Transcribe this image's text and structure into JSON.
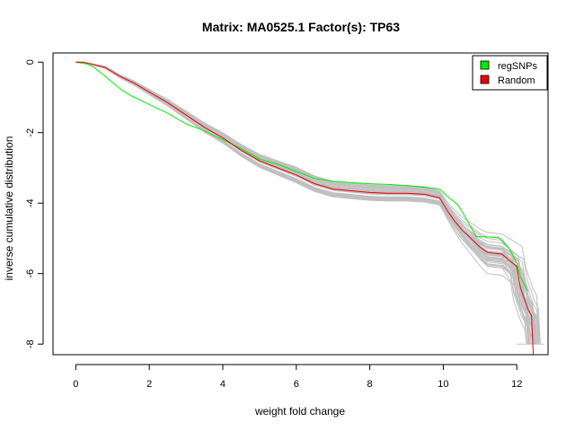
{
  "chart_data": {
    "type": "line",
    "title": "Matrix: MA0525.1 Factor(s): TP63",
    "xlabel": "weight fold change",
    "ylabel": "inverse cumulative distribution",
    "xlim": [
      -0.62,
      12.85
    ],
    "ylim": [
      -8.3,
      0.26
    ],
    "x_ticks": [
      0,
      2,
      4,
      6,
      8,
      10,
      12
    ],
    "y_ticks": [
      0,
      -2,
      -4,
      -6,
      -8
    ],
    "grid": false,
    "legend_position": "top-right",
    "series": [
      {
        "name": "regSNPs",
        "color": "#00ee00",
        "points": [
          [
            0,
            0
          ],
          [
            0.3,
            -0.05
          ],
          [
            0.5,
            -0.15
          ],
          [
            0.8,
            -0.4
          ],
          [
            1.2,
            -0.75
          ],
          [
            1.5,
            -0.95
          ],
          [
            2,
            -1.2
          ],
          [
            2.5,
            -1.45
          ],
          [
            3,
            -1.75
          ],
          [
            3.5,
            -1.95
          ],
          [
            4,
            -2.2
          ],
          [
            4.5,
            -2.45
          ],
          [
            5,
            -2.75
          ],
          [
            5.5,
            -2.9
          ],
          [
            6,
            -3.1
          ],
          [
            6.5,
            -3.3
          ],
          [
            7,
            -3.38
          ],
          [
            7.5,
            -3.42
          ],
          [
            8,
            -3.45
          ],
          [
            8.5,
            -3.47
          ],
          [
            9,
            -3.5
          ],
          [
            9.5,
            -3.55
          ],
          [
            9.9,
            -3.6
          ],
          [
            10.1,
            -3.8
          ],
          [
            10.4,
            -4.05
          ],
          [
            10.6,
            -4.4
          ],
          [
            10.9,
            -4.95
          ],
          [
            11.5,
            -4.97
          ],
          [
            11.8,
            -5.3
          ],
          [
            12,
            -5.7
          ],
          [
            12.1,
            -6.1
          ],
          [
            12.3,
            -6.5
          ]
        ]
      },
      {
        "name": "Random",
        "color": "#ee0000",
        "points": [
          [
            0,
            0
          ],
          [
            0.2,
            0
          ],
          [
            0.4,
            -0.05
          ],
          [
            0.8,
            -0.15
          ],
          [
            1.2,
            -0.4
          ],
          [
            1.6,
            -0.6
          ],
          [
            2,
            -0.85
          ],
          [
            2.5,
            -1.15
          ],
          [
            3,
            -1.5
          ],
          [
            3.5,
            -1.85
          ],
          [
            4,
            -2.15
          ],
          [
            4.5,
            -2.5
          ],
          [
            5,
            -2.8
          ],
          [
            5.5,
            -3
          ],
          [
            6,
            -3.2
          ],
          [
            6.5,
            -3.45
          ],
          [
            7,
            -3.6
          ],
          [
            7.5,
            -3.65
          ],
          [
            8,
            -3.7
          ],
          [
            8.5,
            -3.72
          ],
          [
            9,
            -3.72
          ],
          [
            9.5,
            -3.75
          ],
          [
            9.9,
            -3.85
          ],
          [
            10.1,
            -4.2
          ],
          [
            10.3,
            -4.5
          ],
          [
            10.5,
            -4.75
          ],
          [
            10.8,
            -5.05
          ],
          [
            11,
            -5.25
          ],
          [
            11.2,
            -5.4
          ],
          [
            11.6,
            -5.45
          ],
          [
            12,
            -5.8
          ],
          [
            12.1,
            -6.4
          ],
          [
            12.3,
            -7.0
          ],
          [
            12.4,
            -7.2
          ],
          [
            12.45,
            -8.3
          ]
        ]
      }
    ],
    "background_color": "#c0c0c0"
  }
}
